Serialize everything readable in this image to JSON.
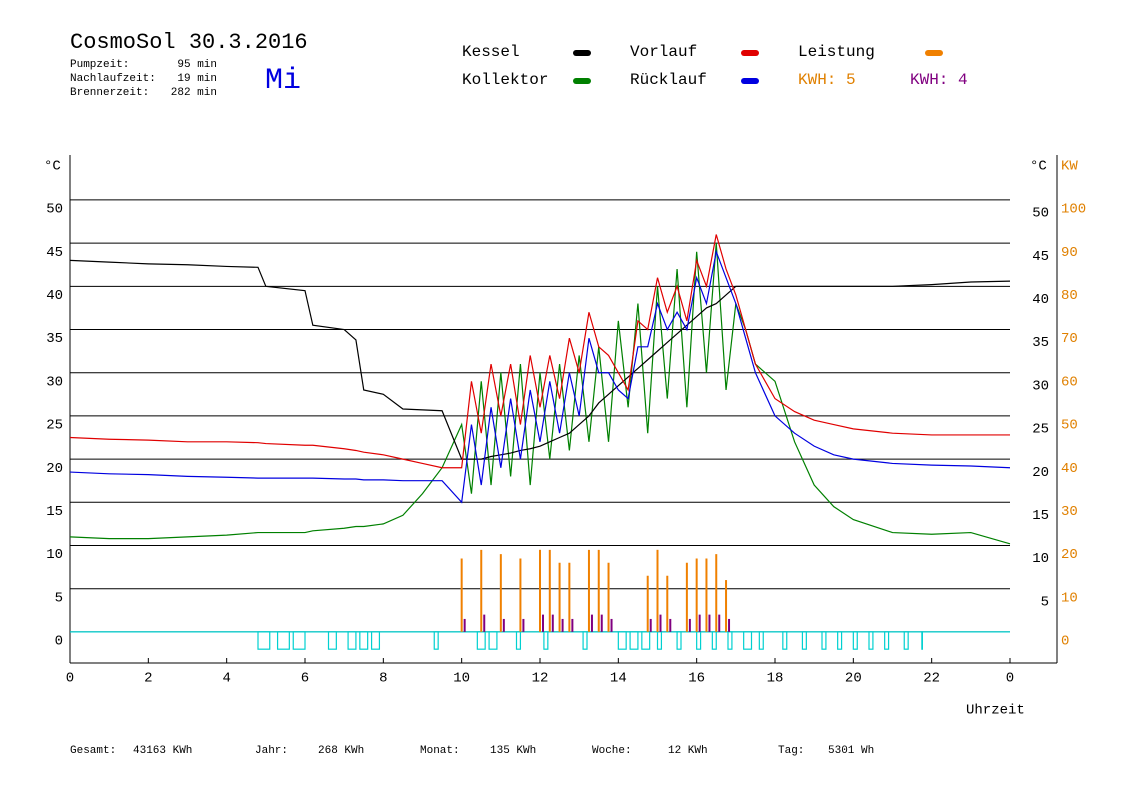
{
  "chart_data": {
    "type": "line",
    "title": "CosmoSol 30.3.2016",
    "info": [
      {
        "label": "Pumpzeit:",
        "value": "95 min"
      },
      {
        "label": "Nachlaufzeit:",
        "value": "19 min"
      },
      {
        "label": "Brennerzeit:",
        "value": "282 min"
      }
    ],
    "weekday": "Mi",
    "y_label": "°C",
    "y_label_right": "°C",
    "y2_label": "KW",
    "x_label": "Uhrzeit",
    "xlim": [
      0,
      25.2
    ],
    "xticks": [
      0,
      2,
      4,
      6,
      8,
      10,
      12,
      14,
      16,
      18,
      20,
      22,
      {
        "value": 24,
        "label": "0"
      }
    ],
    "ylim": [
      -3.6,
      55.2
    ],
    "yticks": [
      0,
      5,
      10,
      15,
      20,
      25,
      30,
      35,
      40,
      45,
      50
    ],
    "yticks_right": [
      5,
      10,
      15,
      20,
      25,
      30,
      35,
      40,
      45,
      50
    ],
    "y2lim": [
      -7.2,
      110.4
    ],
    "y2ticks": [
      0,
      10,
      20,
      30,
      40,
      50,
      60,
      70,
      80,
      90,
      100
    ],
    "grid": true,
    "x": [
      0,
      1,
      2,
      3,
      4,
      4.8,
      5,
      6,
      6.2,
      7,
      7.3,
      7.5,
      8,
      8.5,
      9,
      9.5,
      10,
      10.25,
      10.5,
      10.75,
      11,
      11.25,
      11.5,
      11.75,
      12,
      12.25,
      12.5,
      12.75,
      13,
      13.25,
      13.5,
      13.75,
      14,
      14.25,
      14.5,
      14.75,
      15,
      15.25,
      15.5,
      15.75,
      16,
      16.25,
      16.5,
      16.75,
      17,
      17.25,
      17.5,
      18,
      18.5,
      19,
      19.5,
      20,
      21,
      22,
      23,
      24
    ],
    "series": [
      {
        "name": "Kessel",
        "color": "#000000",
        "values": [
          43,
          42.8,
          42.6,
          42.5,
          42.3,
          42.2,
          40,
          39.5,
          35.5,
          35,
          33.8,
          28,
          27.5,
          25.8,
          25.7,
          25.6,
          20,
          20,
          20,
          20.3,
          20.5,
          20.7,
          21,
          21.2,
          21.5,
          22,
          22.5,
          23,
          24,
          25,
          26.5,
          27.5,
          28.5,
          29.5,
          30.5,
          31.5,
          32.5,
          33.5,
          34.5,
          35.5,
          36.5,
          37.5,
          38,
          39,
          40,
          40,
          40,
          40,
          40,
          40,
          40,
          40,
          40,
          40.2,
          40.5,
          40.6
        ]
      },
      {
        "name": "Kollektor",
        "color": "#008000",
        "values": [
          11,
          10.8,
          10.8,
          11,
          11.2,
          11.5,
          11.5,
          11.5,
          11.7,
          12,
          12.2,
          12.2,
          12.5,
          13.5,
          16,
          19,
          24,
          16,
          29,
          17,
          30,
          18,
          31,
          17,
          30,
          20,
          31,
          21,
          32,
          22,
          33,
          22,
          36,
          26,
          38,
          23,
          40,
          27,
          42,
          26,
          44,
          30,
          45,
          28,
          38,
          35,
          31,
          29,
          22,
          17,
          14.5,
          13,
          11.5,
          11.3,
          11.5,
          10.2
        ]
      },
      {
        "name": "Vorlauf",
        "color": "#e00000",
        "values": [
          22.5,
          22.3,
          22.2,
          22,
          22,
          21.9,
          21.8,
          21.6,
          21.6,
          21.2,
          21,
          20.8,
          20.5,
          20,
          19.5,
          19,
          19,
          29,
          23,
          31,
          25,
          31,
          24,
          32,
          26,
          32,
          27,
          34,
          30,
          37,
          33,
          32,
          30,
          28,
          36,
          35,
          41,
          37,
          40,
          36,
          43,
          40,
          46,
          42,
          39,
          35,
          31,
          27,
          25.5,
          24.5,
          24,
          23.5,
          23,
          22.8,
          22.8,
          22.8
        ]
      },
      {
        "name": "Rücklauf",
        "color": "#0000e0",
        "values": [
          18.5,
          18.3,
          18.2,
          18,
          17.9,
          17.8,
          17.8,
          17.8,
          17.8,
          17.7,
          17.7,
          17.6,
          17.6,
          17.5,
          17.5,
          17.5,
          15,
          24,
          17,
          26,
          19,
          27,
          20,
          28,
          22,
          29,
          23,
          30,
          25,
          34,
          30,
          30,
          28,
          27,
          33,
          33,
          38,
          35,
          37,
          35,
          41,
          38,
          44,
          41,
          38,
          34,
          30,
          25,
          23,
          21.5,
          20.5,
          20,
          19.5,
          19.3,
          19.2,
          19
        ]
      }
    ],
    "leistung": {
      "name": "Leistung",
      "color": "#f08000",
      "axis": "y2",
      "x": [
        10,
        10.5,
        11,
        11.5,
        12,
        12.25,
        12.5,
        12.75,
        13.25,
        13.5,
        13.75,
        14.75,
        15,
        15.25,
        15.75,
        16,
        16.25,
        16.5,
        16.75
      ],
      "values": [
        17,
        19,
        18,
        17,
        19,
        19,
        16,
        16,
        19,
        19,
        16,
        13,
        19,
        13,
        16,
        17,
        17,
        18,
        12
      ]
    },
    "kwh": [
      {
        "label": "KWH: 5",
        "color": "#e08000"
      },
      {
        "label": "KWH: 4",
        "color": "#800080",
        "values": [
          3,
          4,
          3,
          3,
          4,
          4,
          3,
          3,
          4,
          4,
          3,
          3,
          4,
          3,
          3,
          4,
          4,
          4,
          3
        ]
      }
    ],
    "pump": {
      "color": "#00d0d0",
      "low": -2,
      "intervals": [
        [
          4.8,
          5.1
        ],
        [
          5.3,
          5.6
        ],
        [
          5.7,
          6.0
        ],
        [
          6.6,
          6.8
        ],
        [
          7.1,
          7.3
        ],
        [
          7.4,
          7.6
        ],
        [
          7.7,
          7.9
        ],
        [
          9.3,
          9.4
        ],
        [
          10.4,
          10.6
        ],
        [
          10.7,
          10.9
        ],
        [
          11.4,
          11.5
        ],
        [
          12.1,
          12.2
        ],
        [
          13.1,
          13.2
        ],
        [
          14.0,
          14.2
        ],
        [
          14.3,
          14.5
        ],
        [
          14.6,
          14.8
        ],
        [
          15.0,
          15.1
        ],
        [
          15.5,
          15.6
        ],
        [
          16.0,
          16.1
        ],
        [
          16.4,
          16.5
        ],
        [
          16.8,
          16.9
        ],
        [
          17.2,
          17.4
        ],
        [
          17.6,
          17.7
        ],
        [
          18.2,
          18.3
        ],
        [
          18.7,
          18.8
        ],
        [
          19.2,
          19.3
        ],
        [
          19.6,
          19.7
        ],
        [
          20.0,
          20.1
        ],
        [
          20.4,
          20.5
        ],
        [
          20.8,
          20.9
        ],
        [
          21.3,
          21.4
        ],
        [
          21.75,
          21.76
        ]
      ]
    },
    "footer": [
      {
        "label": "Gesamt:",
        "value": "43163 KWh"
      },
      {
        "label": "Jahr:",
        "value": "268 KWh"
      },
      {
        "label": "Monat:",
        "value": "135 KWh"
      },
      {
        "label": "Woche:",
        "value": "12 KWh"
      },
      {
        "label": "Tag:",
        "value": "5301 Wh"
      }
    ]
  }
}
